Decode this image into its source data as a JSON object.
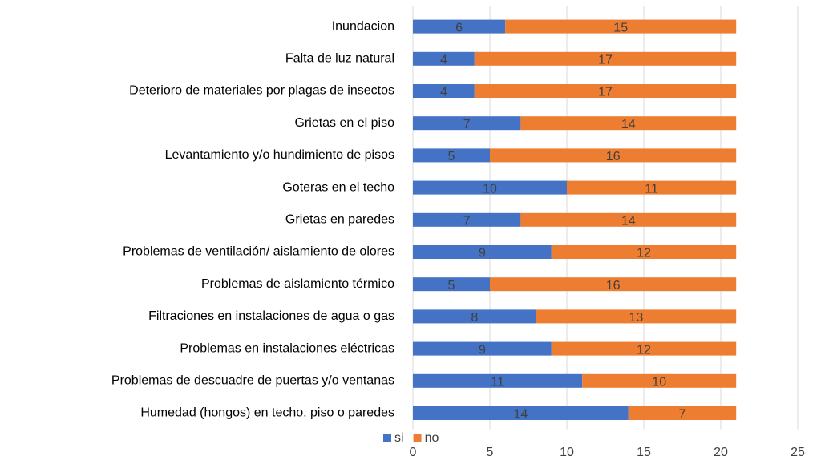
{
  "chart_data": {
    "type": "stacked_bar_horizontal",
    "categories": [
      "Inundacion",
      "Falta de luz natural",
      "Deterioro de materiales por plagas de insectos",
      "Grietas en el piso",
      "Levantamiento y/o hundimiento de pisos",
      "Goteras en el techo",
      "Grietas en paredes",
      "Problemas de ventilación/ aislamiento de olores",
      "Problemas de aislamiento térmico",
      "Filtraciones en instalaciones de agua o gas",
      "Problemas en instalaciones eléctricas",
      "Problemas de descuadre de puertas y/o ventanas",
      "Humedad (hongos) en techo, piso o paredes"
    ],
    "series": [
      {
        "name": "si",
        "color": "#4472c4",
        "values": [
          6,
          4,
          4,
          7,
          5,
          10,
          7,
          9,
          5,
          8,
          9,
          11,
          14
        ]
      },
      {
        "name": "no",
        "color": "#ed7d31",
        "values": [
          15,
          17,
          17,
          14,
          16,
          11,
          14,
          12,
          16,
          13,
          12,
          10,
          7
        ]
      }
    ],
    "xlim": [
      0,
      25
    ],
    "xticks": [
      0,
      5,
      10,
      15,
      20,
      25
    ],
    "grid": true,
    "legend": "bottom"
  }
}
